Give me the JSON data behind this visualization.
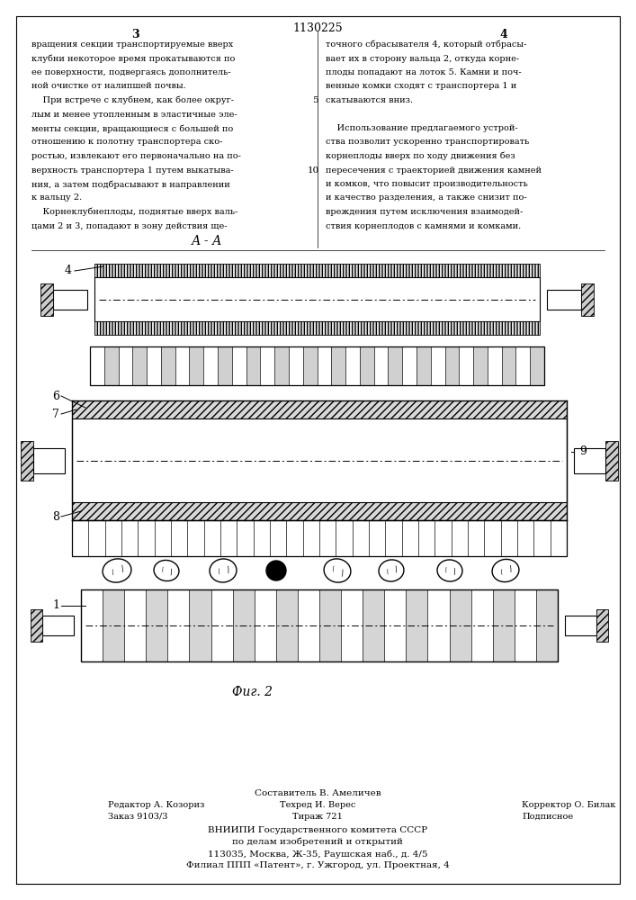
{
  "page_number_left": "3",
  "page_number_right": "4",
  "patent_number": "1130225",
  "text_left": [
    "вращения секции транспортируемые вверх",
    "клубни некоторое время прокатываются по",
    "ее поверхности, подвергаясь дополнитель-",
    "ной очистке от налипшей почвы.",
    "    При встрече с клубнем, как более округ-",
    "лым и менее утопленным в эластичные эле-",
    "менты секции, вращающиеся с большей по",
    "отношению к полотну транспортера ско-",
    "ростью, извлекают его первоначально на по-",
    "верхность транспортера 1 путем выкатыва-",
    "ния, а затем подбрасывают в направлении",
    "к вальцу 2.",
    "    Корнеклубнеплоды, поднятые вверх валь-",
    "цами 2 и 3, попадают в зону действия ще-"
  ],
  "text_right": [
    "точного сбрасывателя 4, который отбрасы-",
    "вает их в сторону вальца 2, откуда корне-",
    "плоды попадают на лоток 5. Камни и поч-",
    "венные комки сходят с транспортера 1 и",
    "скатываются вниз.",
    "",
    "    Использование предлагаемого устрой-",
    "ства позволит ускоренно транспортировать",
    "корнеплоды вверх по ходу движения без",
    "пересечения с траекторией движения камней",
    "и комков, что повысит производительность",
    "и качество разделения, а также снизит по-",
    "вреждения путем исключения взаимодей-",
    "ствия корнеплодов с камнями и комками."
  ],
  "section_label": "А - А",
  "fig_label": "Фиг. 2",
  "footer_line0": "Составитель В. Амеличев",
  "footer_line1_left": "Редактор А. Козориз",
  "footer_line1_mid": "Техред И. Верес",
  "footer_line1_right": "Корректор О. Билак",
  "footer_line2_left": "Заказ 9103/3",
  "footer_line2_mid": "Тираж 721",
  "footer_line2_right": "Подписное",
  "footer_line3": "ВНИИПИ Государственного комитета СССР",
  "footer_line4": "по делам изобретений и открытий",
  "footer_line5": "113035, Москва, Ж-35, Раушская наб., д. 4/5",
  "footer_line6": "Филиал ППП «Патент», г. Ужгород, ул. Проектная, 4"
}
